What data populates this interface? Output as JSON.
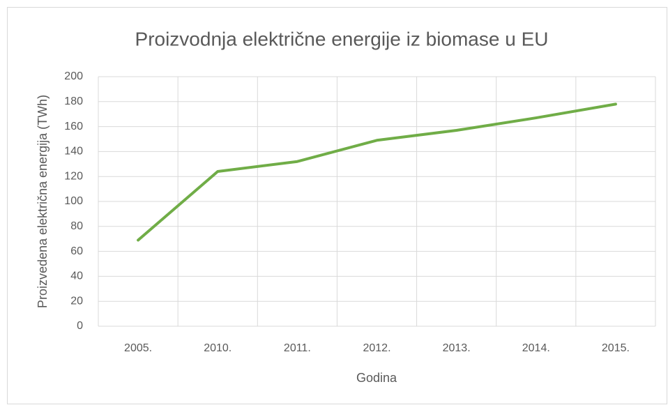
{
  "chart_data": {
    "type": "line",
    "title": "Proizvodnja električne energije iz biomase u EU",
    "x_label": "Godina",
    "y_label": "Proizvedena električna energija (TWh)",
    "categories": [
      "2005.",
      "2010.",
      "2011.",
      "2012.",
      "2013.",
      "2014.",
      "2015."
    ],
    "values": [
      69,
      124,
      132,
      149,
      157,
      167,
      178
    ],
    "color": "#70ad47",
    "ylim": [
      0,
      200
    ],
    "yticks": [
      0,
      20,
      40,
      60,
      80,
      100,
      120,
      140,
      160,
      180,
      200
    ],
    "grid": true
  }
}
